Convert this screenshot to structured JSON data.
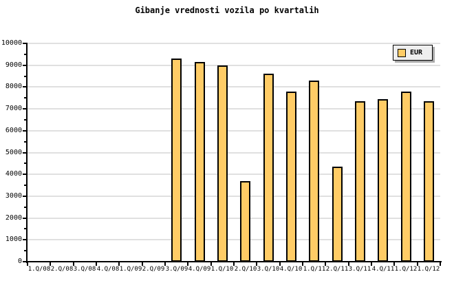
{
  "title": "Gibanje vrednosti vozila po kvartalih",
  "legend": {
    "label": "EUR"
  },
  "colors": {
    "background": "#FFFFFF",
    "bar_fill": "#FFCC66",
    "bar_border": "#000000",
    "grid": "#E0E0E0",
    "axis": "#000000",
    "legend_bg": "#EEEEEE",
    "legend_shadow": "#AAAAAA"
  },
  "chart_data": {
    "type": "bar",
    "title": "Gibanje vrednosti vozila po kvartalih",
    "categories": [
      "1.Q/08",
      "2.Q/08",
      "3.Q/08",
      "4.Q/08",
      "1.Q/09",
      "2.Q/09",
      "3.Q/09",
      "4.Q/09",
      "1.Q/10",
      "2.Q/10",
      "3.Q/10",
      "4.Q/10",
      "1.Q/11",
      "2.Q/11",
      "3.Q/11",
      "4.Q/11",
      "1.Q/12",
      "1.Q/12"
    ],
    "series": [
      {
        "name": "EUR",
        "values": [
          null,
          null,
          null,
          null,
          null,
          null,
          9300,
          9150,
          9000,
          3700,
          8600,
          7800,
          8300,
          4350,
          7350,
          7450,
          7800,
          7350
        ]
      }
    ],
    "xlabel": "",
    "ylabel": "",
    "ylim": [
      0,
      10000
    ],
    "yticks": [
      0,
      1000,
      2000,
      3000,
      4000,
      5000,
      6000,
      7000,
      8000,
      9000,
      10000
    ],
    "ytick_minor_step": 500,
    "grid": true,
    "legend_position": "top-right"
  }
}
